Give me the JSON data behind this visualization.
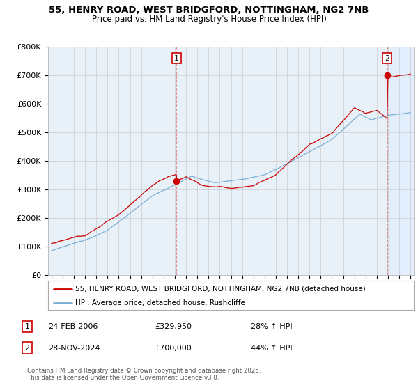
{
  "title_line1": "55, HENRY ROAD, WEST BRIDGFORD, NOTTINGHAM, NG2 7NB",
  "title_line2": "Price paid vs. HM Land Registry's House Price Index (HPI)",
  "ylim": [
    0,
    800000
  ],
  "yticks": [
    0,
    100000,
    200000,
    300000,
    400000,
    500000,
    600000,
    700000,
    800000
  ],
  "ytick_labels": [
    "£0",
    "£100K",
    "£200K",
    "£300K",
    "£400K",
    "£500K",
    "£600K",
    "£700K",
    "£800K"
  ],
  "red_color": "#cc0000",
  "blue_color": "#7ab0d4",
  "dashed_color": "#cc6666",
  "marker1_year": 2006.15,
  "marker1_value": 329950,
  "marker2_year": 2024.92,
  "marker2_value": 700000,
  "legend_red": "55, HENRY ROAD, WEST BRIDGFORD, NOTTINGHAM, NG2 7NB (detached house)",
  "legend_blue": "HPI: Average price, detached house, Rushcliffe",
  "note1_label": "1",
  "note1_date": "24-FEB-2006",
  "note1_price": "£329,950",
  "note1_hpi": "28% ↑ HPI",
  "note2_label": "2",
  "note2_date": "28-NOV-2024",
  "note2_price": "£700,000",
  "note2_hpi": "44% ↑ HPI",
  "footer": "Contains HM Land Registry data © Crown copyright and database right 2025.\nThis data is licensed under the Open Government Licence v3.0.",
  "background_color": "#ffffff",
  "grid_color": "#cccccc",
  "chart_bg": "#e8f0f8"
}
